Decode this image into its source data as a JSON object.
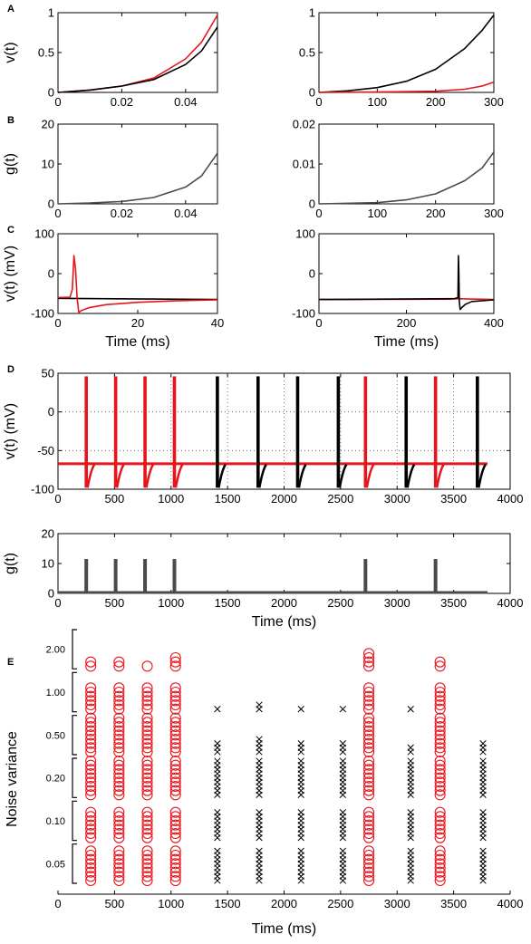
{
  "colors": {
    "red": "#e8141c",
    "black": "#000000",
    "gray": "#4a4a4a",
    "grid": "#555555"
  },
  "chart_data": [
    {
      "panel_letter": "A",
      "type": "line",
      "ylabel": "v(t)",
      "xlabel": "",
      "xlim": [
        0,
        0.05
      ],
      "ylim": [
        0,
        1
      ],
      "xticks": [
        "0",
        "0.02",
        "0.04"
      ],
      "yticks": [
        "0",
        "0.5",
        "1"
      ],
      "series": [
        {
          "color": "red",
          "x": [
            0,
            0.01,
            0.02,
            0.03,
            0.04,
            0.045,
            0.05
          ],
          "y": [
            0.0,
            0.03,
            0.08,
            0.18,
            0.42,
            0.63,
            0.97
          ]
        },
        {
          "color": "black",
          "x": [
            0,
            0.01,
            0.02,
            0.03,
            0.04,
            0.045,
            0.05
          ],
          "y": [
            0.0,
            0.03,
            0.08,
            0.16,
            0.35,
            0.52,
            0.82
          ]
        }
      ]
    },
    {
      "panel_letter": "",
      "type": "line",
      "ylabel": "",
      "xlabel": "",
      "xlim": [
        0,
        300
      ],
      "ylim": [
        0,
        1
      ],
      "xticks": [
        "0",
        "100",
        "200",
        "300"
      ],
      "yticks": [
        "0",
        "0.5",
        "1"
      ],
      "series": [
        {
          "color": "black",
          "x": [
            0,
            50,
            100,
            150,
            200,
            250,
            280,
            300
          ],
          "y": [
            0.0,
            0.02,
            0.06,
            0.14,
            0.29,
            0.55,
            0.78,
            0.97
          ]
        },
        {
          "color": "red",
          "x": [
            0,
            100,
            200,
            250,
            280,
            300
          ],
          "y": [
            0.0,
            0.005,
            0.015,
            0.04,
            0.08,
            0.13
          ]
        }
      ]
    },
    {
      "panel_letter": "B",
      "type": "line",
      "ylabel": "g(t)",
      "xlabel": "",
      "xlim": [
        0,
        0.05
      ],
      "ylim": [
        0,
        20
      ],
      "xticks": [
        "0",
        "0.02",
        "0.04"
      ],
      "yticks": [
        "0",
        "10",
        "20"
      ],
      "series": [
        {
          "color": "gray",
          "x": [
            0,
            0.01,
            0.02,
            0.03,
            0.04,
            0.045,
            0.05
          ],
          "y": [
            0.0,
            0.2,
            0.6,
            1.6,
            4.2,
            7.0,
            12.7
          ]
        }
      ]
    },
    {
      "panel_letter": "",
      "type": "line",
      "ylabel": "",
      "xlabel": "",
      "xlim": [
        0,
        300
      ],
      "ylim": [
        0,
        0.02
      ],
      "xticks": [
        "0",
        "100",
        "200",
        "300"
      ],
      "yticks": [
        "0",
        "0.01",
        "0.02"
      ],
      "series": [
        {
          "color": "gray",
          "x": [
            0,
            100,
            150,
            200,
            250,
            280,
            300
          ],
          "y": [
            0.0,
            0.0003,
            0.001,
            0.0025,
            0.0058,
            0.009,
            0.013
          ]
        }
      ]
    },
    {
      "panel_letter": "C",
      "type": "line",
      "ylabel": "v(t) (mV)",
      "xlabel": "Time (ms)",
      "xlim": [
        0,
        40
      ],
      "ylim": [
        -100,
        100
      ],
      "xticks": [
        "0",
        "20",
        "40"
      ],
      "yticks": [
        "-100",
        "0",
        "100"
      ],
      "series": [
        {
          "color": "black",
          "x": [
            0,
            40
          ],
          "y": [
            -62,
            -65
          ]
        },
        {
          "color": "red",
          "x": [
            0,
            3,
            3.6,
            4,
            4.4,
            4.8,
            5.2,
            6,
            8,
            12,
            20,
            30,
            40
          ],
          "y": [
            -60,
            -59,
            -40,
            45,
            10,
            -60,
            -97,
            -92,
            -85,
            -78,
            -72,
            -68,
            -66
          ]
        }
      ]
    },
    {
      "panel_letter": "",
      "type": "line",
      "ylabel": "",
      "xlabel": "Time (ms)",
      "xlim": [
        0,
        400
      ],
      "ylim": [
        -100,
        100
      ],
      "xticks": [
        "0",
        "200",
        "400"
      ],
      "yticks": [
        "-100",
        "0",
        "100"
      ],
      "series": [
        {
          "color": "red",
          "x": [
            0,
            300,
            315,
            400
          ],
          "y": [
            -65,
            -64,
            -63,
            -65
          ]
        },
        {
          "color": "black",
          "x": [
            0,
            310,
            318,
            319,
            320,
            321,
            323,
            327,
            335,
            350,
            400
          ],
          "y": [
            -65,
            -63,
            -60,
            45,
            0,
            -70,
            -90,
            -85,
            -77,
            -70,
            -66
          ]
        }
      ]
    },
    {
      "panel_letter": "D",
      "type": "line",
      "ylabel": "v(t) (mV)",
      "xlabel": "",
      "xlim": [
        0,
        4000
      ],
      "ylim": [
        -100,
        50
      ],
      "grid": "dotted",
      "xticks": [
        "0",
        "500",
        "1000",
        "1500",
        "2000",
        "2500",
        "3000",
        "3500",
        "4000"
      ],
      "yticks": [
        "-100",
        "-50",
        "0",
        "50"
      ],
      "baseline_mV": -67,
      "end_ms": 3800,
      "spikes": [
        {
          "t": 250,
          "color": "red"
        },
        {
          "t": 510,
          "color": "red"
        },
        {
          "t": 770,
          "color": "red"
        },
        {
          "t": 1030,
          "color": "red"
        },
        {
          "t": 1410,
          "color": "black"
        },
        {
          "t": 1770,
          "color": "black"
        },
        {
          "t": 2120,
          "color": "black"
        },
        {
          "t": 2480,
          "color": "black"
        },
        {
          "t": 2720,
          "color": "red"
        },
        {
          "t": 3080,
          "color": "black"
        },
        {
          "t": 3340,
          "color": "red"
        },
        {
          "t": 3710,
          "color": "black"
        }
      ]
    },
    {
      "panel_letter": "",
      "type": "line",
      "ylabel": "g(t)",
      "xlabel": "Time (ms)",
      "xlim": [
        0,
        4000
      ],
      "ylim": [
        0,
        20
      ],
      "xticks": [
        "0",
        "500",
        "1000",
        "1500",
        "2000",
        "2500",
        "3000",
        "3500",
        "4000"
      ],
      "yticks": [
        "0",
        "10",
        "20"
      ],
      "end_ms": 3800,
      "pulse_height": 11.5,
      "pulse_times": [
        250,
        510,
        770,
        1030,
        2720,
        3340
      ]
    },
    {
      "panel_letter": "E",
      "type": "scatter",
      "ylabel": "Noise variance",
      "xlabel": "Time (ms)",
      "xlim": [
        0,
        4000
      ],
      "xticks": [
        "0",
        "500",
        "1000",
        "1500",
        "2000",
        "2500",
        "3000",
        "3500",
        "4000"
      ],
      "groups": [
        "2.00",
        "1.00",
        "0.50",
        "0.20",
        "0.10",
        "0.05"
      ],
      "columns": [
        {
          "t": 290,
          "kind": "circle",
          "counts": [
            2,
            6,
            9,
            9,
            7,
            8
          ]
        },
        {
          "t": 540,
          "kind": "circle",
          "counts": [
            2,
            6,
            9,
            9,
            7,
            8
          ]
        },
        {
          "t": 790,
          "kind": "circle",
          "counts": [
            1,
            6,
            9,
            9,
            7,
            8
          ]
        },
        {
          "t": 1040,
          "kind": "circle",
          "counts": [
            3,
            6,
            9,
            9,
            7,
            8
          ]
        },
        {
          "t": 1410,
          "kind": "cross",
          "counts": [
            0,
            1,
            3,
            9,
            7,
            8
          ]
        },
        {
          "t": 1780,
          "kind": "cross",
          "counts": [
            0,
            2,
            4,
            9,
            7,
            8
          ]
        },
        {
          "t": 2150,
          "kind": "cross",
          "counts": [
            0,
            1,
            3,
            9,
            7,
            8
          ]
        },
        {
          "t": 2520,
          "kind": "cross",
          "counts": [
            0,
            1,
            3,
            9,
            7,
            8
          ]
        },
        {
          "t": 2750,
          "kind": "circle",
          "counts": [
            4,
            6,
            9,
            9,
            7,
            8
          ]
        },
        {
          "t": 3120,
          "kind": "cross",
          "counts": [
            0,
            1,
            2,
            9,
            7,
            8
          ]
        },
        {
          "t": 3380,
          "kind": "circle",
          "counts": [
            2,
            6,
            9,
            9,
            7,
            8
          ]
        },
        {
          "t": 3760,
          "kind": "cross",
          "counts": [
            0,
            0,
            3,
            9,
            7,
            8
          ]
        }
      ]
    }
  ]
}
